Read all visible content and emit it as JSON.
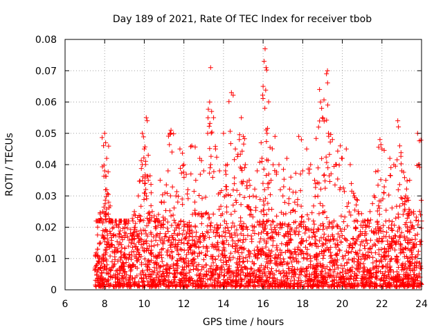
{
  "chart_data": {
    "type": "scatter",
    "title": "Day 189 of 2021, Rate Of TEC Index for receiver tbob",
    "xlabel": "GPS time / hours",
    "ylabel": "ROTI / TECUs",
    "xlim": [
      6,
      24
    ],
    "ylim": [
      0,
      0.08
    ],
    "x_ticks": [
      "6",
      "8",
      "10",
      "12",
      "14",
      "16",
      "18",
      "20",
      "22",
      "24"
    ],
    "y_ticks": [
      "0",
      "0.01",
      "0.02",
      "0.03",
      "0.04",
      "0.05",
      "0.06",
      "0.07",
      "0.08"
    ],
    "grid": true,
    "marker": "plus",
    "color": "#ff0000",
    "series": [
      {
        "name": "ROTI",
        "points": [
          [
            7.6,
            0.005
          ],
          [
            7.7,
            0.022
          ],
          [
            7.8,
            0.015
          ],
          [
            7.9,
            0.025
          ],
          [
            8.0,
            0.038
          ],
          [
            8.0,
            0.05
          ],
          [
            8.05,
            0.047
          ],
          [
            8.1,
            0.042
          ],
          [
            8.1,
            0.032
          ],
          [
            8.2,
            0.028
          ],
          [
            8.3,
            0.018
          ],
          [
            8.5,
            0.012
          ],
          [
            8.7,
            0.02
          ],
          [
            8.9,
            0.016
          ],
          [
            9.1,
            0.022
          ],
          [
            9.3,
            0.018
          ],
          [
            9.5,
            0.025
          ],
          [
            9.7,
            0.03
          ],
          [
            9.9,
            0.04
          ],
          [
            9.9,
            0.05
          ],
          [
            10.0,
            0.045
          ],
          [
            10.1,
            0.055
          ],
          [
            10.15,
            0.054
          ],
          [
            10.2,
            0.043
          ],
          [
            10.2,
            0.035
          ],
          [
            10.4,
            0.025
          ],
          [
            10.6,
            0.02
          ],
          [
            10.8,
            0.035
          ],
          [
            11.0,
            0.028
          ],
          [
            11.2,
            0.038
          ],
          [
            11.3,
            0.05
          ],
          [
            11.35,
            0.051
          ],
          [
            11.4,
            0.044
          ],
          [
            11.6,
            0.03
          ],
          [
            11.8,
            0.045
          ],
          [
            12.0,
            0.04
          ],
          [
            12.2,
            0.032
          ],
          [
            12.4,
            0.046
          ],
          [
            12.6,
            0.035
          ],
          [
            12.8,
            0.042
          ],
          [
            13.0,
            0.038
          ],
          [
            13.2,
            0.05
          ],
          [
            13.3,
            0.06
          ],
          [
            13.35,
            0.071
          ],
          [
            13.4,
            0.057
          ],
          [
            13.5,
            0.055
          ],
          [
            13.6,
            0.045
          ],
          [
            13.8,
            0.038
          ],
          [
            14.0,
            0.05
          ],
          [
            14.2,
            0.04
          ],
          [
            14.4,
            0.063
          ],
          [
            14.6,
            0.045
          ],
          [
            14.8,
            0.048
          ],
          [
            14.9,
            0.055
          ],
          [
            15.0,
            0.049
          ],
          [
            15.1,
            0.04
          ],
          [
            15.3,
            0.035
          ],
          [
            15.5,
            0.03
          ],
          [
            15.7,
            0.038
          ],
          [
            15.9,
            0.047
          ],
          [
            16.0,
            0.065
          ],
          [
            16.05,
            0.073
          ],
          [
            16.1,
            0.077
          ],
          [
            16.15,
            0.071
          ],
          [
            16.2,
            0.05
          ],
          [
            16.4,
            0.035
          ],
          [
            16.6,
            0.049
          ],
          [
            16.8,
            0.04
          ],
          [
            17.0,
            0.03
          ],
          [
            17.2,
            0.042
          ],
          [
            17.4,
            0.036
          ],
          [
            17.6,
            0.028
          ],
          [
            17.8,
            0.049
          ],
          [
            18.0,
            0.038
          ],
          [
            18.2,
            0.045
          ],
          [
            18.4,
            0.04
          ],
          [
            18.6,
            0.035
          ],
          [
            18.8,
            0.052
          ],
          [
            18.85,
            0.064
          ],
          [
            18.9,
            0.06
          ],
          [
            19.0,
            0.055
          ],
          [
            19.2,
            0.069
          ],
          [
            19.25,
            0.07
          ],
          [
            19.3,
            0.05
          ],
          [
            19.5,
            0.048
          ],
          [
            19.7,
            0.04
          ],
          [
            19.9,
            0.046
          ],
          [
            20.0,
            0.042
          ],
          [
            20.2,
            0.045
          ],
          [
            20.4,
            0.04
          ],
          [
            20.6,
            0.03
          ],
          [
            20.8,
            0.025
          ],
          [
            21.0,
            0.018
          ],
          [
            21.2,
            0.02
          ],
          [
            21.4,
            0.025
          ],
          [
            21.6,
            0.03
          ],
          [
            21.8,
            0.038
          ],
          [
            21.9,
            0.048
          ],
          [
            22.0,
            0.045
          ],
          [
            22.2,
            0.035
          ],
          [
            22.4,
            0.042
          ],
          [
            22.6,
            0.04
          ],
          [
            22.8,
            0.054
          ],
          [
            22.9,
            0.046
          ],
          [
            23.0,
            0.038
          ],
          [
            23.2,
            0.03
          ],
          [
            23.4,
            0.035
          ],
          [
            23.6,
            0.025
          ],
          [
            23.8,
            0.05
          ],
          [
            23.9,
            0.04
          ],
          [
            24.0,
            0.022
          ]
        ],
        "dense_band": {
          "x_range": [
            7.5,
            24.0
          ],
          "typical_y_range": [
            0.001,
            0.022
          ],
          "description": "dense cloud of low ROTI values"
        }
      }
    ]
  }
}
